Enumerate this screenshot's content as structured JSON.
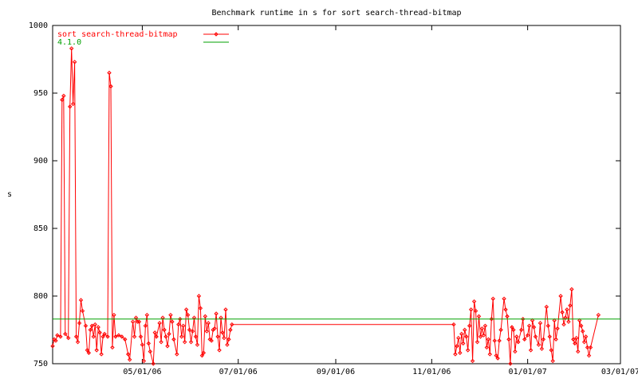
{
  "chart_data": {
    "type": "line",
    "title": "Benchmark runtime in s for sort search-thread-bitmap",
    "y_label": "s",
    "xlim": [
      "2006-03-05",
      "2007-03-01"
    ],
    "xticks": [
      {
        "value": "2006-05-01",
        "label": "05/01/06"
      },
      {
        "value": "2006-07-01",
        "label": "07/01/06"
      },
      {
        "value": "2006-09-01",
        "label": "09/01/06"
      },
      {
        "value": "2006-11-01",
        "label": "11/01/06"
      },
      {
        "value": "2007-01-01",
        "label": "01/01/07"
      },
      {
        "value": "2007-03-01",
        "label": "03/01/07"
      }
    ],
    "ylim": [
      750,
      1000
    ],
    "yticks": [
      750,
      800,
      850,
      900,
      950,
      1000
    ],
    "legend": "top-left",
    "series": [
      {
        "name": "sort search-thread-bitmap",
        "color": "#ff0000",
        "markers": true,
        "x": [
          "2006-03-05",
          "2006-03-06",
          "2006-03-07",
          "2006-03-08",
          "2006-03-10",
          "2006-03-11",
          "2006-03-12",
          "2006-03-13",
          "2006-03-15",
          "2006-03-16",
          "2006-03-17",
          "2006-03-18",
          "2006-03-19",
          "2006-03-20",
          "2006-03-21",
          "2006-03-22",
          "2006-03-23",
          "2006-03-24",
          "2006-03-26",
          "2006-03-27",
          "2006-03-28",
          "2006-03-29",
          "2006-03-30",
          "2006-03-31",
          "2006-04-01",
          "2006-04-02",
          "2006-04-03",
          "2006-04-04",
          "2006-04-05",
          "2006-04-06",
          "2006-04-07",
          "2006-04-09",
          "2006-04-10",
          "2006-04-11",
          "2006-04-12",
          "2006-04-13",
          "2006-04-14",
          "2006-04-16",
          "2006-04-18",
          "2006-04-20",
          "2006-04-22",
          "2006-04-23",
          "2006-04-25",
          "2006-04-26",
          "2006-04-27",
          "2006-04-28",
          "2006-04-29",
          "2006-04-30",
          "2006-05-01",
          "2006-05-02",
          "2006-05-03",
          "2006-05-04",
          "2006-05-05",
          "2006-05-06",
          "2006-05-08",
          "2006-05-09",
          "2006-05-10",
          "2006-05-12",
          "2006-05-13",
          "2006-05-14",
          "2006-05-15",
          "2006-05-16",
          "2006-05-17",
          "2006-05-18",
          "2006-05-19",
          "2006-05-20",
          "2006-05-21",
          "2006-05-23",
          "2006-05-24",
          "2006-05-25",
          "2006-05-26",
          "2006-05-27",
          "2006-05-28",
          "2006-05-29",
          "2006-05-30",
          "2006-05-31",
          "2006-06-01",
          "2006-06-02",
          "2006-06-03",
          "2006-06-04",
          "2006-06-05",
          "2006-06-06",
          "2006-06-07",
          "2006-06-08",
          "2006-06-09",
          "2006-06-10",
          "2006-06-11",
          "2006-06-12",
          "2006-06-13",
          "2006-06-14",
          "2006-06-15",
          "2006-06-16",
          "2006-06-17",
          "2006-06-18",
          "2006-06-19",
          "2006-06-20",
          "2006-06-21",
          "2006-06-22",
          "2006-06-23",
          "2006-06-24",
          "2006-06-25",
          "2006-06-26",
          "2006-06-27",
          "2006-11-15",
          "2006-11-16",
          "2006-11-17",
          "2006-11-18",
          "2006-11-19",
          "2006-11-20",
          "2006-11-21",
          "2006-11-22",
          "2006-11-23",
          "2006-11-24",
          "2006-11-25",
          "2006-11-26",
          "2006-11-27",
          "2006-11-28",
          "2006-11-29",
          "2006-11-30",
          "2006-12-01",
          "2006-12-02",
          "2006-12-03",
          "2006-12-04",
          "2006-12-05",
          "2006-12-06",
          "2006-12-07",
          "2006-12-08",
          "2006-12-09",
          "2006-12-10",
          "2006-12-11",
          "2006-12-12",
          "2006-12-13",
          "2006-12-14",
          "2006-12-15",
          "2006-12-17",
          "2006-12-18",
          "2006-12-19",
          "2006-12-20",
          "2006-12-21",
          "2006-12-22",
          "2006-12-23",
          "2006-12-24",
          "2006-12-25",
          "2006-12-26",
          "2006-12-28",
          "2006-12-29",
          "2006-12-30",
          "2007-01-01",
          "2007-01-02",
          "2007-01-03",
          "2007-01-04",
          "2007-01-05",
          "2007-01-06",
          "2007-01-08",
          "2007-01-09",
          "2007-01-10",
          "2007-01-11",
          "2007-01-13",
          "2007-01-14",
          "2007-01-15",
          "2007-01-16",
          "2007-01-17",
          "2007-01-18",
          "2007-01-19",
          "2007-01-20",
          "2007-01-22",
          "2007-01-23",
          "2007-01-24",
          "2007-01-25",
          "2007-01-26",
          "2007-01-27",
          "2007-01-28",
          "2007-01-29",
          "2007-01-30",
          "2007-01-31",
          "2007-02-01",
          "2007-02-02",
          "2007-02-03",
          "2007-02-04",
          "2007-02-05",
          "2007-02-06",
          "2007-02-07",
          "2007-02-08",
          "2007-02-09",
          "2007-02-10",
          "2007-02-15"
        ],
        "values": [
          763,
          768,
          767,
          771,
          770,
          945,
          948,
          772,
          769,
          940,
          983,
          942,
          973,
          770,
          766,
          780,
          797,
          789,
          778,
          760,
          758,
          775,
          778,
          770,
          779,
          760,
          777,
          773,
          757,
          770,
          772,
          770,
          965,
          955,
          762,
          786,
          770,
          771,
          770,
          768,
          757,
          753,
          781,
          770,
          784,
          781,
          781,
          770,
          764,
          752,
          778,
          786,
          765,
          759,
          750,
          773,
          770,
          780,
          766,
          784,
          775,
          770,
          763,
          772,
          786,
          781,
          768,
          757,
          779,
          783,
          770,
          778,
          766,
          790,
          786,
          775,
          766,
          774,
          784,
          770,
          764,
          800,
          791,
          756,
          758,
          785,
          774,
          780,
          768,
          767,
          775,
          776,
          787,
          770,
          760,
          784,
          773,
          769,
          790,
          764,
          768,
          775,
          779,
          779,
          757,
          763,
          769,
          758,
          772,
          765,
          775,
          770,
          760,
          778,
          790,
          752,
          796,
          789,
          766,
          785,
          770,
          776,
          771,
          778,
          762,
          768,
          757,
          783,
          798,
          767,
          756,
          754,
          767,
          775,
          798,
          790,
          785,
          768,
          750,
          777,
          775,
          759,
          770,
          766,
          775,
          783,
          768,
          771,
          778,
          760,
          782,
          777,
          770,
          764,
          780,
          761,
          768,
          792,
          778,
          770,
          760,
          752,
          782,
          768,
          776,
          800,
          788,
          779,
          784,
          790,
          781,
          793,
          805,
          768,
          765,
          769,
          759,
          782,
          778,
          774,
          766,
          770,
          762,
          756,
          762,
          786
        ]
      },
      {
        "name": "4.1.0",
        "color": "#00a000",
        "markers": false,
        "x": [
          "2006-03-05",
          "2007-03-01"
        ],
        "values": [
          783,
          783
        ]
      }
    ]
  }
}
